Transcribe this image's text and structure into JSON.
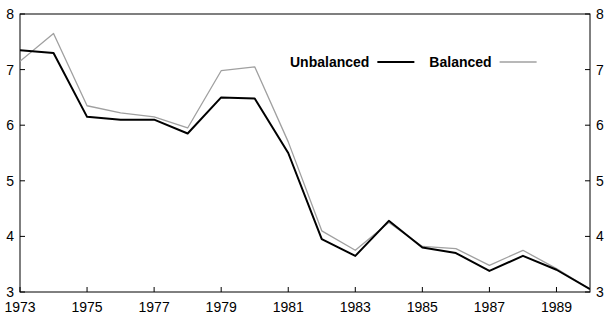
{
  "chart_data": {
    "type": "line",
    "x": [
      1973,
      1974,
      1975,
      1976,
      1977,
      1978,
      1979,
      1980,
      1981,
      1982,
      1983,
      1984,
      1985,
      1986,
      1987,
      1988,
      1989,
      1990
    ],
    "series": [
      {
        "name": "Unbalanced",
        "color": "#000000",
        "values": [
          7.35,
          7.3,
          6.15,
          6.1,
          6.1,
          5.85,
          6.5,
          6.48,
          5.5,
          3.95,
          3.65,
          4.28,
          3.8,
          3.7,
          3.38,
          3.65,
          3.4,
          3.05
        ]
      },
      {
        "name": "Balanced",
        "color": "#a0a0a0",
        "values": [
          7.15,
          7.65,
          6.35,
          6.22,
          6.15,
          5.95,
          6.98,
          7.05,
          5.7,
          4.1,
          3.75,
          4.25,
          3.82,
          3.78,
          3.48,
          3.75,
          3.42,
          3.05
        ]
      }
    ],
    "xlim": [
      1973,
      1990
    ],
    "xticks": [
      1973,
      1975,
      1977,
      1979,
      1981,
      1983,
      1985,
      1987,
      1989
    ],
    "ylim": [
      3,
      8
    ],
    "yticks": [
      3,
      4,
      5,
      6,
      7,
      8
    ],
    "legend": "upper right",
    "grid": false
  }
}
